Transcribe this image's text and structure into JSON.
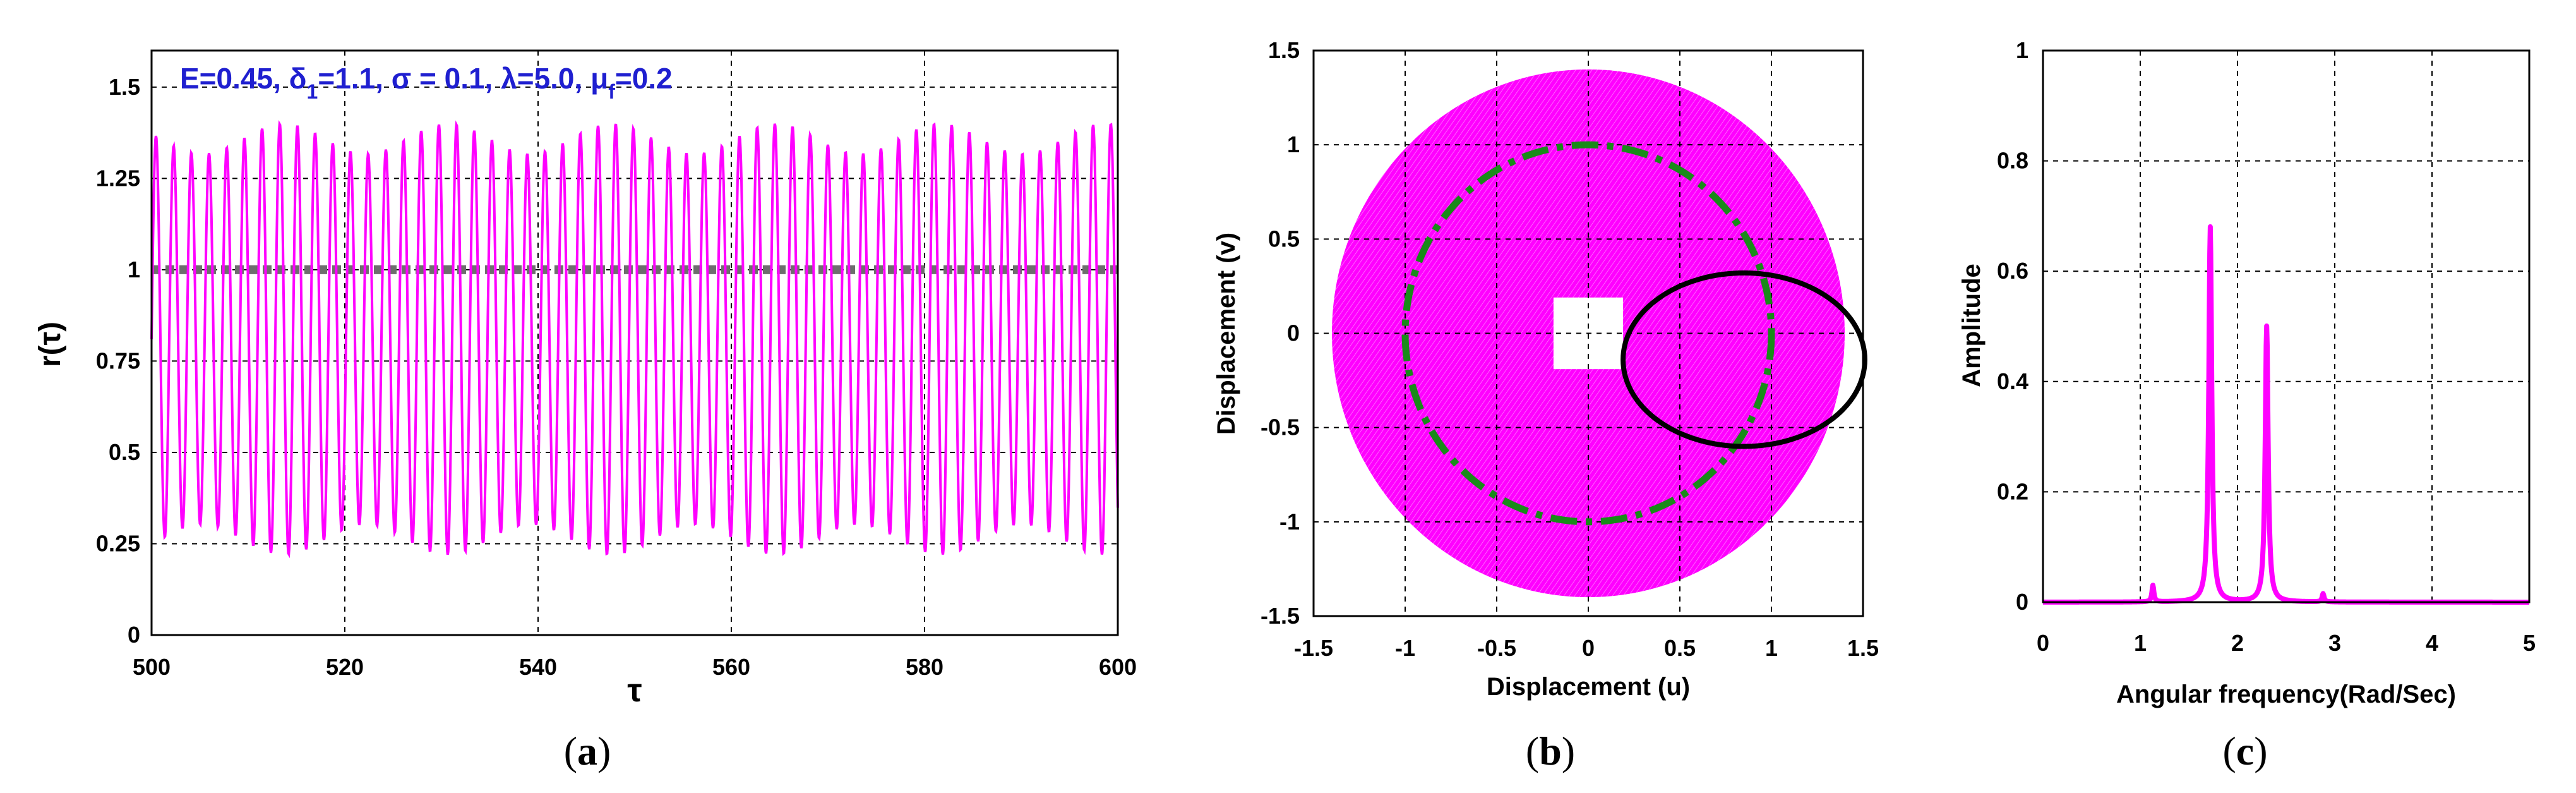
{
  "chart_data": [
    {
      "id": "a",
      "type": "line",
      "caption_letter": "a",
      "xlabel": "τ",
      "ylabel": "r(τ)",
      "xlim": [
        500,
        600
      ],
      "ylim": [
        0,
        1.6
      ],
      "xticks": [
        "500",
        "520",
        "540",
        "560",
        "580",
        "600"
      ],
      "yticks": [
        "0",
        "0.25",
        "0.5",
        "0.75",
        "1",
        "1.25",
        "1.5"
      ],
      "annotation": {
        "E": "E=0.45, ",
        "delta_sym": "δ",
        "delta_sub": "1",
        "delta_val": "=1.1, ",
        "sigma": "σ = 0.1, ",
        "lambda": "λ=5.0, ",
        "mu_sym": "μ",
        "mu_sub": "f",
        "mu_val": "=0.2"
      },
      "series": [
        {
          "name": "r(τ)",
          "color": "#ff00ff",
          "period": 1.83,
          "min": 0.22,
          "max": 1.4,
          "x_start": 500,
          "x_end": 600
        },
        {
          "name": "reference r=1",
          "color": "#6e6e6e",
          "style": "dashed",
          "y": 1
        }
      ]
    },
    {
      "id": "b",
      "type": "line",
      "caption_letter": "b",
      "xlabel": "Displacement (u)",
      "ylabel": "Displacement (v)",
      "xlim": [
        -1.5,
        1.5
      ],
      "ylim": [
        -1.5,
        1.5
      ],
      "xticks": [
        "-1.5",
        "-1",
        "-0.5",
        "0",
        "0.5",
        "1",
        "1.5"
      ],
      "yticks": [
        "-1.5",
        "-1",
        "-0.5",
        "0",
        "0.5",
        "1",
        "1.5"
      ],
      "series": [
        {
          "name": "trajectory",
          "color": "#ff00ff",
          "outer_radius": 1.4,
          "inner_radius": 0.2
        },
        {
          "name": "unit circle",
          "color": "#1a8a1a",
          "style": "dash-dot",
          "radius": 1.0
        },
        {
          "name": "closed orbit",
          "color": "#000000",
          "center": [
            0.85,
            -0.14
          ],
          "radius_u": 0.66,
          "radius_v": 0.46
        }
      ]
    },
    {
      "id": "c",
      "type": "line",
      "caption_letter": "c",
      "xlabel": "Angular frequency(Rad/Sec)",
      "ylabel": "Amplitude",
      "xlim": [
        0,
        5
      ],
      "ylim": [
        0,
        1
      ],
      "xticks": [
        "0",
        "1",
        "2",
        "3",
        "4",
        "5"
      ],
      "yticks": [
        "0",
        "0.2",
        "0.4",
        "0.6",
        "0.8",
        "1"
      ],
      "series": [
        {
          "name": "spectrum",
          "color": "#ff00ff",
          "peaks": [
            {
              "x": 1.13,
              "y": 0.03
            },
            {
              "x": 1.72,
              "y": 0.68
            },
            {
              "x": 2.3,
              "y": 0.5
            },
            {
              "x": 2.88,
              "y": 0.015
            }
          ]
        }
      ]
    }
  ]
}
